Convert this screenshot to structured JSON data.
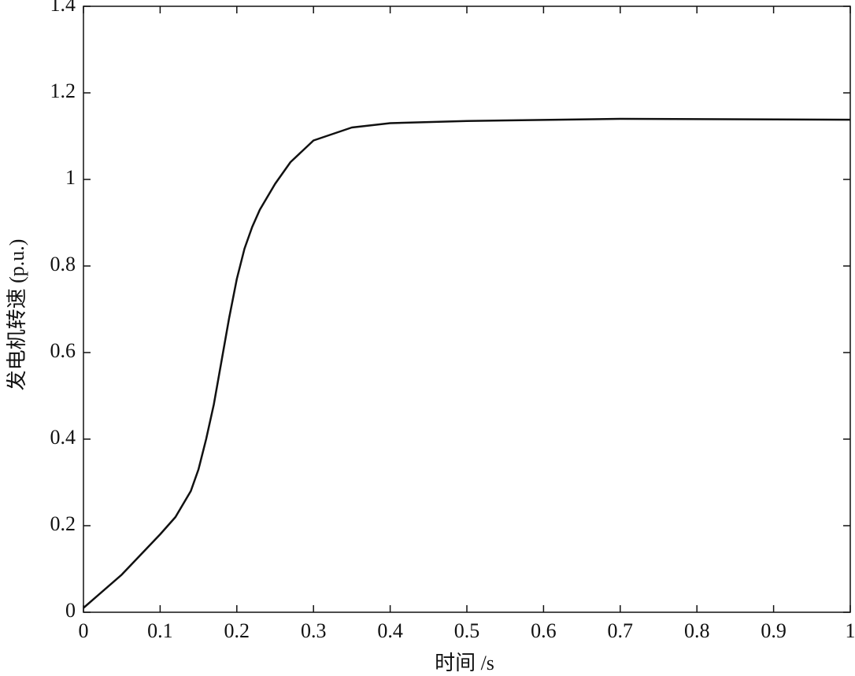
{
  "chart_data": {
    "type": "line",
    "x_label": "时间 /s",
    "y_label": "发电机转速 (p.u.)",
    "x": [
      0,
      0.05,
      0.1,
      0.12,
      0.14,
      0.15,
      0.16,
      0.17,
      0.18,
      0.19,
      0.2,
      0.21,
      0.22,
      0.23,
      0.25,
      0.27,
      0.3,
      0.35,
      0.4,
      0.5,
      0.7,
      1.0
    ],
    "series": [
      {
        "color": "#111111",
        "values": [
          0.01,
          0.087,
          0.18,
          0.22,
          0.28,
          0.33,
          0.4,
          0.48,
          0.58,
          0.68,
          0.77,
          0.84,
          0.89,
          0.93,
          0.99,
          1.04,
          1.09,
          1.12,
          1.13,
          1.135,
          1.14,
          1.138
        ]
      }
    ],
    "xlim": [
      0,
      1
    ],
    "ylim": [
      0,
      1.4
    ],
    "xticks": [
      0,
      0.1,
      0.2,
      0.3,
      0.4,
      0.5,
      0.6,
      0.7,
      0.8,
      0.9,
      1
    ],
    "yticks": [
      0,
      0.2,
      0.4,
      0.6,
      0.8,
      1,
      1.2,
      1.4
    ],
    "grid": false
  }
}
